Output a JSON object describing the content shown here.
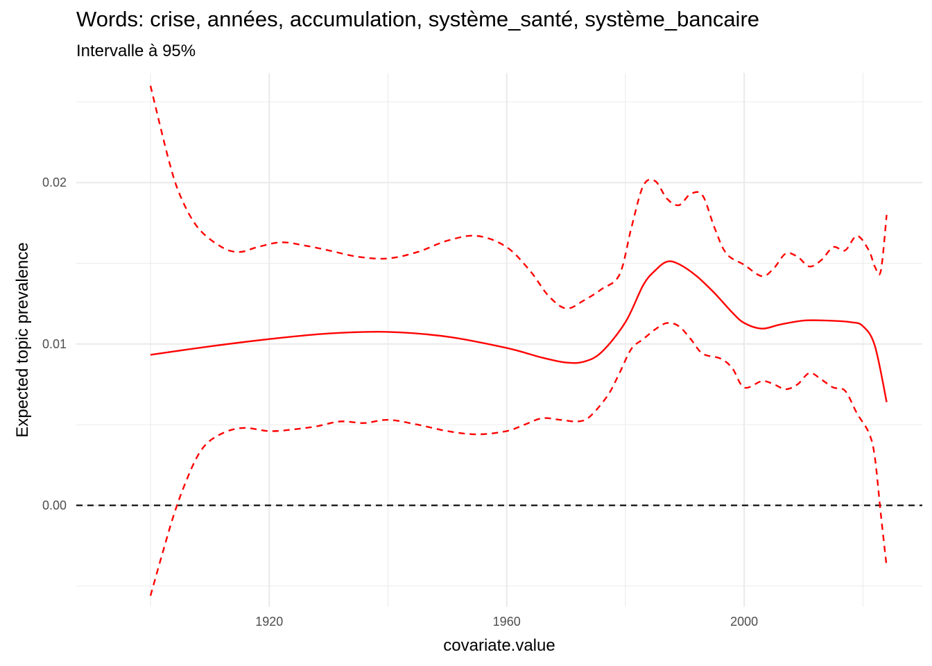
{
  "chart_data": {
    "type": "line",
    "title": "Words: crise, années, accumulation, système_santé, système_bancaire",
    "subtitle": "Intervalle à 95%",
    "xlabel": "covariate.value",
    "ylabel": "Expected topic prevalence",
    "xlim": [
      1887.5,
      2030
    ],
    "ylim": [
      -0.0063,
      0.0268
    ],
    "x_ticks": [
      1920,
      1960,
      2000
    ],
    "x_tick_labels": [
      "1920",
      "1960",
      "2000"
    ],
    "y_ticks": [
      0.0,
      0.01,
      0.02
    ],
    "y_tick_labels": [
      "0.00",
      "0.01",
      "0.02"
    ],
    "grid": true,
    "reference_line": {
      "y": 0,
      "style": "dashed",
      "color": "#000000"
    },
    "series_color": "#ff0000",
    "series": [
      {
        "role": "estimate",
        "style": "solid",
        "x": [
          1900,
          1910,
          1920,
          1930,
          1940,
          1950,
          1960,
          1966,
          1970,
          1973,
          1976,
          1980,
          1983,
          1985,
          1987,
          1989,
          1992,
          1995,
          1998,
          2000,
          2003,
          2006,
          2010,
          2014,
          2018,
          2020,
          2022,
          2024
        ],
        "y": [
          0.00933,
          0.00985,
          0.0103,
          0.01065,
          0.01075,
          0.01045,
          0.00975,
          0.00915,
          0.00885,
          0.0089,
          0.0095,
          0.01135,
          0.01365,
          0.01455,
          0.0151,
          0.01495,
          0.0142,
          0.01315,
          0.01195,
          0.0113,
          0.01095,
          0.0112,
          0.01145,
          0.01145,
          0.01135,
          0.0111,
          0.0099,
          0.0064
        ]
      },
      {
        "role": "upper-95",
        "style": "dashed",
        "x": [
          1900,
          1903,
          1905,
          1908,
          1912,
          1915,
          1918,
          1922,
          1926,
          1930,
          1935,
          1940,
          1945,
          1950,
          1955,
          1960,
          1964,
          1967,
          1970,
          1973,
          1976,
          1979,
          1981,
          1983,
          1985,
          1987,
          1989,
          1991,
          1993,
          1995,
          1997,
          2000,
          2003,
          2005,
          2007,
          2009,
          2011,
          2013,
          2015,
          2017,
          2019,
          2021,
          2022,
          2023,
          2024
        ],
        "y": [
          0.026,
          0.0215,
          0.0192,
          0.0172,
          0.016,
          0.0157,
          0.016,
          0.0163,
          0.0161,
          0.0158,
          0.0154,
          0.0153,
          0.0157,
          0.0164,
          0.0167,
          0.016,
          0.0145,
          0.013,
          0.0122,
          0.0127,
          0.0134,
          0.0143,
          0.0172,
          0.0198,
          0.0201,
          0.019,
          0.0186,
          0.0193,
          0.0192,
          0.0172,
          0.0156,
          0.0149,
          0.0142,
          0.0147,
          0.0156,
          0.0154,
          0.0148,
          0.0152,
          0.016,
          0.0158,
          0.0167,
          0.0158,
          0.0148,
          0.0145,
          0.018
        ]
      },
      {
        "role": "lower-95",
        "style": "dashed",
        "x": [
          1900,
          1902,
          1904,
          1906,
          1908,
          1910,
          1913,
          1916,
          1920,
          1924,
          1928,
          1932,
          1936,
          1940,
          1945,
          1950,
          1955,
          1960,
          1963,
          1966,
          1969,
          1972,
          1974,
          1977,
          1979,
          1981,
          1983,
          1985,
          1987,
          1989,
          1991,
          1993,
          1996,
          1998,
          2000,
          2003,
          2005,
          2007,
          2009,
          2011,
          2013,
          2015,
          2017,
          2019,
          2021,
          2022,
          2023,
          2024
        ],
        "y": [
          -0.0056,
          -0.003,
          -0.0005,
          0.0015,
          0.0031,
          0.004,
          0.0046,
          0.0048,
          0.0046,
          0.0047,
          0.0049,
          0.0052,
          0.0051,
          0.0053,
          0.005,
          0.0046,
          0.0044,
          0.0046,
          0.005,
          0.0054,
          0.0053,
          0.0052,
          0.0055,
          0.0068,
          0.0082,
          0.0097,
          0.0103,
          0.0109,
          0.0113,
          0.0111,
          0.0103,
          0.0094,
          0.0091,
          0.0085,
          0.0073,
          0.0077,
          0.0075,
          0.0072,
          0.0075,
          0.0082,
          0.0078,
          0.0073,
          0.0071,
          0.0057,
          0.0045,
          0.003,
          -0.0005,
          -0.0038
        ]
      }
    ]
  }
}
